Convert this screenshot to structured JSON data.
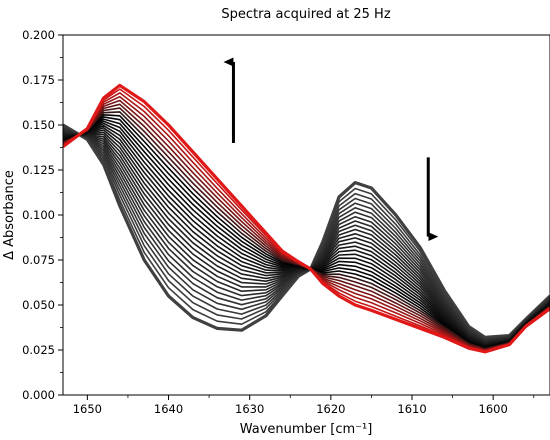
{
  "chart_data": {
    "type": "line",
    "title": "Spectra acquired at 25 Hz",
    "xlabel": "Wavenumber [cm⁻¹]",
    "ylabel": "Δ Absorbance",
    "xlim": [
      1653,
      1593
    ],
    "ylim": [
      0,
      0.2
    ],
    "x_reversed": true,
    "x_ticks": [
      1650,
      1640,
      1630,
      1620,
      1610,
      1600
    ],
    "y_ticks": [
      0.0,
      0.025,
      0.05,
      0.075,
      0.1,
      0.125,
      0.15,
      0.175,
      0.2
    ],
    "y_tick_labels": [
      "0.000",
      "0.025",
      "0.050",
      "0.075",
      "0.100",
      "0.125",
      "0.150",
      "0.175",
      "0.200"
    ],
    "spectra_count": 30,
    "color_gradient": [
      "#404040",
      "#e01818"
    ],
    "spectrum_x": [
      1653,
      1650,
      1648,
      1646,
      1643,
      1640,
      1637,
      1634,
      1631,
      1628,
      1626,
      1624,
      1622.5,
      1621,
      1619,
      1617,
      1615,
      1612,
      1609,
      1606,
      1603,
      1601,
      1598,
      1596,
      1593
    ],
    "spectrum_first": [
      0.15,
      0.142,
      0.128,
      0.105,
      0.075,
      0.055,
      0.043,
      0.037,
      0.036,
      0.044,
      0.055,
      0.066,
      0.07,
      0.085,
      0.11,
      0.118,
      0.115,
      0.1,
      0.082,
      0.058,
      0.038,
      0.032,
      0.033,
      0.042,
      0.055
    ],
    "spectrum_last": [
      0.138,
      0.148,
      0.165,
      0.172,
      0.163,
      0.15,
      0.135,
      0.12,
      0.105,
      0.09,
      0.08,
      0.074,
      0.07,
      0.062,
      0.055,
      0.05,
      0.047,
      0.042,
      0.037,
      0.032,
      0.026,
      0.024,
      0.028,
      0.038,
      0.048
    ],
    "annotations": [
      {
        "type": "arrow",
        "direction": "up",
        "x": 1632,
        "y_from": 0.14,
        "y_to": 0.185
      },
      {
        "type": "arrow",
        "direction": "down",
        "x": 1608,
        "y_from": 0.132,
        "y_to": 0.088
      }
    ],
    "grid": false
  }
}
